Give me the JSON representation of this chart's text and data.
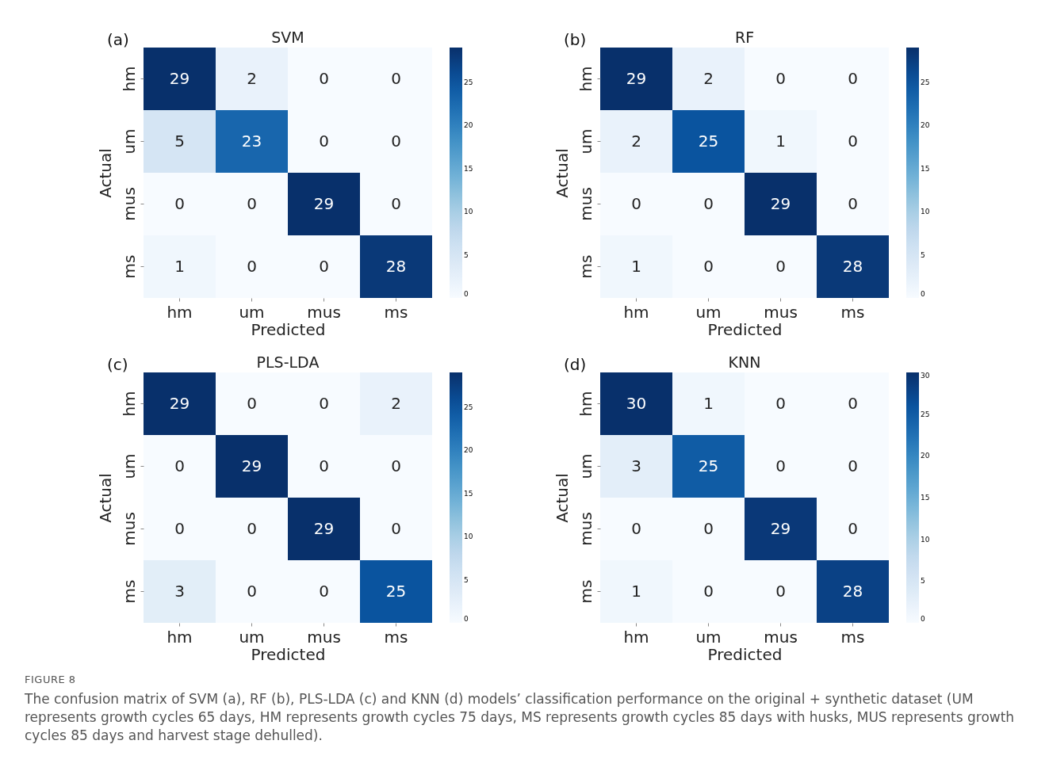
{
  "chart_data": [
    {
      "type": "heatmap",
      "title": "SVM",
      "xlabel": "Predicted",
      "ylabel": "Actual",
      "categories": [
        "hm",
        "um",
        "mus",
        "ms"
      ],
      "y_categories": [
        "hm",
        "um",
        "mus",
        "ms"
      ],
      "cells": [
        [
          29,
          2,
          0,
          0
        ],
        [
          5,
          23,
          0,
          0
        ],
        [
          0,
          0,
          29,
          0
        ],
        [
          1,
          0,
          0,
          28
        ]
      ],
      "clim": [
        0,
        29
      ],
      "cticks": [
        0,
        5,
        10,
        15,
        20,
        25
      ],
      "data_labels": true,
      "annotations": [
        "(a)"
      ]
    },
    {
      "type": "heatmap",
      "title": "RF",
      "xlabel": "Predicted",
      "ylabel": "Actual",
      "categories": [
        "hm",
        "um",
        "mus",
        "ms"
      ],
      "y_categories": [
        "hm",
        "um",
        "mus",
        "ms"
      ],
      "cells": [
        [
          29,
          2,
          0,
          0
        ],
        [
          2,
          25,
          1,
          0
        ],
        [
          0,
          0,
          29,
          0
        ],
        [
          1,
          0,
          0,
          28
        ]
      ],
      "clim": [
        0,
        29
      ],
      "cticks": [
        0,
        5,
        10,
        15,
        20,
        25
      ],
      "data_labels": true,
      "annotations": [
        "(b)"
      ]
    },
    {
      "type": "heatmap",
      "title": "PLS-LDA",
      "xlabel": "Predicted",
      "ylabel": "Actual",
      "categories": [
        "hm",
        "um",
        "mus",
        "ms"
      ],
      "y_categories": [
        "hm",
        "um",
        "mus",
        "ms"
      ],
      "cells": [
        [
          29,
          0,
          0,
          2
        ],
        [
          0,
          29,
          0,
          0
        ],
        [
          0,
          0,
          29,
          0
        ],
        [
          3,
          0,
          0,
          25
        ]
      ],
      "clim": [
        0,
        29
      ],
      "cticks": [
        0,
        5,
        10,
        15,
        20,
        25
      ],
      "data_labels": true,
      "annotations": [
        "(c)"
      ]
    },
    {
      "type": "heatmap",
      "title": "KNN",
      "xlabel": "Predicted",
      "ylabel": "Actual",
      "categories": [
        "hm",
        "um",
        "mus",
        "ms"
      ],
      "y_categories": [
        "hm",
        "um",
        "mus",
        "ms"
      ],
      "cells": [
        [
          30,
          1,
          0,
          0
        ],
        [
          3,
          25,
          0,
          0
        ],
        [
          0,
          0,
          29,
          0
        ],
        [
          1,
          0,
          0,
          28
        ]
      ],
      "clim": [
        0,
        30
      ],
      "cticks": [
        0,
        5,
        10,
        15,
        20,
        25,
        30
      ],
      "data_labels": true,
      "annotations": [
        "(d)",
        "FIGURE 8",
        "The confusion matrix of SVM (a), RF (b), PLS-LDA (c) and KNN (d) models’ classification performance on the original + synthetic dataset (UM represents growth cycles 65 days, HM represents growth cycles 75 days, MS represents growth cycles 85 days with husks, MUS represents growth cycles 85 days and harvest stage dehulled)."
      ]
    }
  ]
}
